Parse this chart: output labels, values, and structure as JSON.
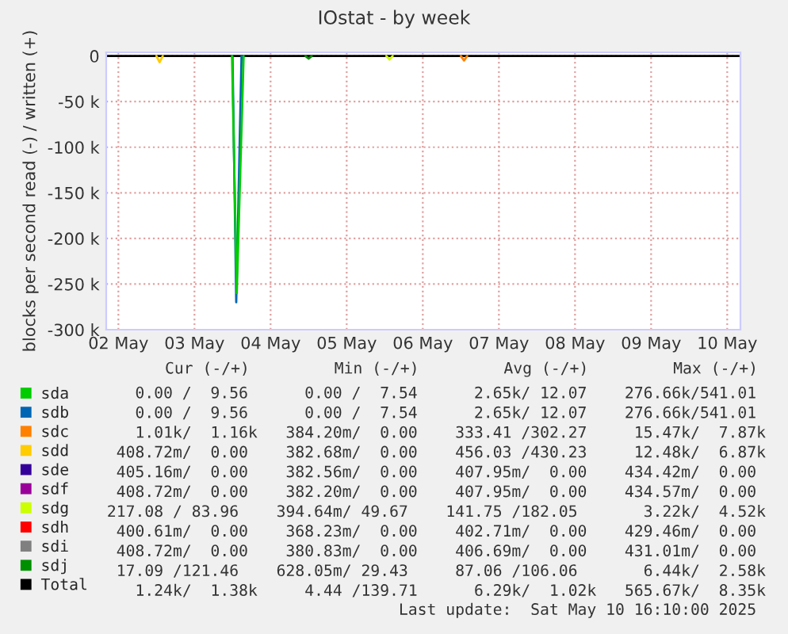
{
  "chart_data": {
    "type": "line",
    "title": "IOstat - by week",
    "ylabel": "blocks per second read (-) / written (+)",
    "xlim": [
      "2025-05-02T08:10",
      "2025-05-10T16:10"
    ],
    "xticks": [
      {
        "value": "2025-05-02T12:00",
        "label": "02 May"
      },
      {
        "value": "2025-05-03T12:00",
        "label": "03 May"
      },
      {
        "value": "2025-05-04T12:00",
        "label": "04 May"
      },
      {
        "value": "2025-05-05T12:00",
        "label": "05 May"
      },
      {
        "value": "2025-05-06T12:00",
        "label": "06 May"
      },
      {
        "value": "2025-05-07T12:00",
        "label": "07 May"
      },
      {
        "value": "2025-05-08T12:00",
        "label": "08 May"
      },
      {
        "value": "2025-05-09T12:00",
        "label": "09 May"
      },
      {
        "value": "2025-05-10T12:00",
        "label": "10 May"
      }
    ],
    "ylim": [
      -300000,
      4000
    ],
    "yticks": [
      0,
      {
        "value": -50000,
        "label": "-50 k"
      },
      {
        "value": -100000,
        "label": "-100 k"
      },
      {
        "value": -150000,
        "label": "-150 k"
      },
      {
        "value": -200000,
        "label": "-200 k"
      },
      {
        "value": -250000,
        "label": "-250 k"
      },
      {
        "value": -300000,
        "label": "-300 k"
      }
    ],
    "grid": true,
    "legend": "bottom",
    "marker": "none",
    "line_style": "solid",
    "series": [
      {
        "name": "sda",
        "color": "#00cc00",
        "x": [
          "2025-05-03T23:50",
          "2025-05-04T01:20",
          "2025-05-04T03:30"
        ],
        "values": [
          0,
          -260000,
          0
        ]
      },
      {
        "name": "sdb",
        "color": "#0066b3",
        "x": [
          "2025-05-04T00:00",
          "2025-05-04T01:10",
          "2025-05-04T02:50"
        ],
        "values": [
          0,
          -270000,
          0
        ]
      },
      {
        "name": "sdc",
        "color": "#ff8000",
        "x": [
          "2025-05-07T00:00",
          "2025-05-07T01:00",
          "2025-05-07T02:00"
        ],
        "values": [
          0,
          -5000,
          0
        ]
      },
      {
        "name": "sdd",
        "color": "#ffcc00",
        "x": [
          "2025-05-03T00:00",
          "2025-05-03T01:00",
          "2025-05-03T02:00"
        ],
        "values": [
          0,
          -7000,
          0
        ]
      },
      {
        "name": "sde",
        "color": "#330099"
      },
      {
        "name": "sdf",
        "color": "#990099"
      },
      {
        "name": "sdg",
        "color": "#ccff00",
        "x": [
          "2025-05-06T00:30",
          "2025-05-06T01:30",
          "2025-05-06T02:30"
        ],
        "values": [
          0,
          -4000,
          0
        ]
      },
      {
        "name": "sdh",
        "color": "#ff0000"
      },
      {
        "name": "sdi",
        "color": "#808080"
      },
      {
        "name": "sdj",
        "color": "#008f00",
        "x": [
          "2025-05-04T23:00",
          "2025-05-05T00:00",
          "2025-05-05T01:00"
        ],
        "values": [
          0,
          -3000,
          0
        ]
      },
      {
        "name": "Total",
        "color": "#000000",
        "x": [
          "2025-05-02T08:10",
          "2025-05-10T16:10"
        ],
        "values": [
          0,
          0
        ]
      }
    ],
    "annotations": [
      "Cur (-/+)         Min (-/+)         Avg (-/+)         Max (-/+)",
      "0.00 /  9.56      0.00 /  7.54      2.65k/ 12.07    276.66k/541.01",
      "0.00 /  9.56      0.00 /  7.54      2.65k/ 12.07    276.66k/541.01",
      "1.01k/  1.16k   384.20m/  0.00    333.41 /302.27     15.47k/  7.87k",
      "408.72m/  0.00    382.68m/  0.00    456.03 /430.23     12.48k/  6.87k",
      "405.16m/  0.00    382.56m/  0.00    407.95m/  0.00    434.42m/  0.00",
      "408.72m/  0.00    382.20m/  0.00    407.95m/  0.00    434.57m/  0.00",
      "217.08 / 83.96    394.64m/ 49.67    141.75 /182.05       3.22k/  4.52k",
      "400.61m/  0.00    368.23m/  0.00    402.71m/  0.00    429.46m/  0.00",
      "408.72m/  0.00    380.83m/  0.00    406.69m/  0.00    431.01m/  0.00",
      "17.09 /121.46    628.05m/ 29.43     87.06 /106.06       6.44k/  2.58k",
      "1.24k/  1.38k     4.44 /139.71      6.29k/  1.02k   565.67k/  8.35k",
      "Last update:  Sat May 10 16:10:00 2025"
    ]
  }
}
